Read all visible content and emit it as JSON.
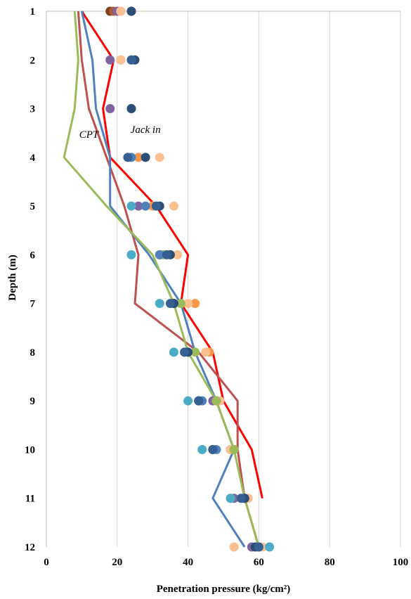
{
  "chart_data": {
    "type": "scatter",
    "xlabel": "Penetration pressure (kg/cm²)",
    "ylabel": "Depth  (m)",
    "xlim": [
      0,
      100
    ],
    "ylim": [
      1,
      12
    ],
    "y_inverted": true,
    "x_ticks": [
      "0",
      "20",
      "40",
      "60",
      "80",
      "100"
    ],
    "y_ticks": [
      "1",
      "2",
      "3",
      "4",
      "5",
      "6",
      "7",
      "8",
      "9",
      "10",
      "11",
      "12"
    ],
    "grid": "vertical",
    "annotations": [
      {
        "text": "CPT",
        "x": 12,
        "y": 3.6
      },
      {
        "text": "Jack in",
        "x": 28,
        "y": 3.5
      }
    ],
    "lines": [
      {
        "color": "#ff0000",
        "points": [
          [
            10,
            1
          ],
          [
            19,
            2
          ],
          [
            16,
            3
          ],
          [
            18,
            4
          ],
          [
            31,
            5
          ],
          [
            40,
            6
          ],
          [
            38,
            7
          ],
          [
            47,
            8
          ],
          [
            50,
            9
          ],
          [
            58,
            10
          ],
          [
            61,
            11
          ]
        ]
      },
      {
        "color": "#c0504d",
        "points": [
          [
            9,
            1
          ],
          [
            10,
            2
          ],
          [
            12,
            3
          ],
          [
            17,
            4
          ],
          [
            22,
            5
          ],
          [
            26,
            6
          ],
          [
            25,
            7
          ],
          [
            43,
            8
          ],
          [
            54,
            9
          ],
          [
            54,
            10
          ],
          [
            56,
            11
          ],
          [
            60,
            12
          ]
        ]
      },
      {
        "color": "#4f81bd",
        "points": [
          [
            10,
            1
          ],
          [
            13,
            2
          ],
          [
            14,
            3
          ],
          [
            18,
            4
          ],
          [
            18,
            5
          ],
          [
            29,
            6
          ],
          [
            38,
            7
          ],
          [
            42,
            8
          ],
          [
            48,
            9
          ],
          [
            53,
            10
          ],
          [
            47,
            11
          ],
          [
            56,
            12
          ]
        ]
      },
      {
        "color": "#9bbb59",
        "points": [
          [
            8,
            1
          ],
          [
            9,
            2
          ],
          [
            8,
            3
          ],
          [
            5,
            4
          ],
          [
            17,
            5
          ],
          [
            30,
            6
          ],
          [
            36,
            7
          ],
          [
            40,
            8
          ],
          [
            48,
            9
          ],
          [
            53,
            10
          ],
          [
            56,
            11
          ],
          [
            60,
            12
          ]
        ]
      }
    ],
    "points": [
      {
        "color": "#7f3f1f",
        "points": [
          [
            18,
            1
          ]
        ]
      },
      {
        "color": "#b05a3a",
        "points": [
          [
            19,
            1
          ]
        ]
      },
      {
        "color": "#8064a2",
        "points": [
          [
            20,
            1
          ],
          [
            18,
            2
          ],
          [
            18,
            3
          ],
          [
            26,
            5
          ],
          [
            32,
            6
          ],
          [
            47,
            9
          ],
          [
            52,
            10
          ],
          [
            53,
            11
          ],
          [
            58,
            12
          ]
        ]
      },
      {
        "color": "#f79646",
        "points": [
          [
            21,
            1
          ],
          [
            21,
            2
          ],
          [
            26,
            4
          ],
          [
            30,
            5
          ],
          [
            32,
            6
          ],
          [
            42,
            7
          ],
          [
            46,
            8
          ],
          [
            48,
            9
          ],
          [
            47,
            10
          ],
          [
            52,
            11
          ],
          [
            60,
            12
          ]
        ]
      },
      {
        "color": "#fac090",
        "points": [
          [
            21,
            1
          ],
          [
            21,
            2
          ],
          [
            32,
            4
          ],
          [
            36,
            5
          ],
          [
            37,
            6
          ],
          [
            40,
            7
          ],
          [
            45,
            8
          ],
          [
            49,
            9
          ],
          [
            52,
            10
          ],
          [
            57,
            11
          ],
          [
            61,
            12
          ],
          [
            53,
            12
          ]
        ]
      },
      {
        "color": "#4bacc6",
        "points": [
          [
            24,
            5
          ],
          [
            24,
            6
          ],
          [
            32,
            7
          ],
          [
            36,
            8
          ],
          [
            40,
            9
          ],
          [
            44,
            10
          ],
          [
            52,
            11
          ],
          [
            63,
            12
          ]
        ]
      },
      {
        "color": "#9bbb59",
        "points": [
          [
            33,
            6
          ],
          [
            38,
            7
          ],
          [
            42,
            8
          ],
          [
            48,
            9
          ],
          [
            53,
            10
          ]
        ]
      },
      {
        "color": "#4f81bd",
        "points": [
          [
            24,
            1
          ],
          [
            24,
            2
          ],
          [
            24,
            3
          ],
          [
            24,
            4
          ],
          [
            28,
            5
          ],
          [
            32,
            6
          ],
          [
            36,
            7
          ],
          [
            40,
            8
          ],
          [
            44,
            9
          ],
          [
            48,
            10
          ],
          [
            56,
            11
          ],
          [
            60,
            12
          ]
        ]
      },
      {
        "color": "#2c4d75",
        "points": [
          [
            24,
            1
          ],
          [
            25,
            2
          ],
          [
            24,
            3
          ],
          [
            28,
            4
          ],
          [
            32,
            5
          ],
          [
            35,
            6
          ],
          [
            36,
            7
          ],
          [
            40,
            8
          ],
          [
            43,
            9
          ],
          [
            47,
            10
          ],
          [
            56,
            11
          ],
          [
            59,
            12
          ]
        ]
      },
      {
        "color": "#366092",
        "points": [
          [
            24,
            2
          ],
          [
            23,
            4
          ],
          [
            31,
            5
          ],
          [
            34,
            6
          ],
          [
            35,
            7
          ],
          [
            39,
            8
          ],
          [
            43,
            9
          ],
          [
            47,
            10
          ],
          [
            55,
            11
          ],
          [
            60,
            12
          ]
        ]
      }
    ]
  }
}
